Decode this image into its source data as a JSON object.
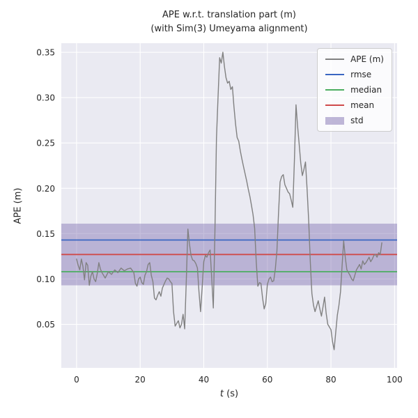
{
  "figure": {
    "title_line1": "APE w.r.t. translation part (m)",
    "title_line2": "(with Sim(3) Umeyama alignment)"
  },
  "chart_data": {
    "type": "line",
    "title": "APE w.r.t. translation part (m)\n(with Sim(3) Umeyama alignment)",
    "xlabel": "t (s)",
    "xlabel_italic": "t",
    "xlabel_rest": " (s)",
    "ylabel": "APE (m)",
    "xlim": [
      -4.8,
      100.8
    ],
    "ylim": [
      0.002,
      0.36
    ],
    "grid": true,
    "legend_position": "upper right",
    "xticks": [
      0,
      20,
      40,
      60,
      80,
      100
    ],
    "xtick_labels": [
      "0",
      "20",
      "40",
      "60",
      "80",
      "100"
    ],
    "yticks": [
      0.05,
      0.1,
      0.15,
      0.2,
      0.25,
      0.3,
      0.35
    ],
    "ytick_labels": [
      "0.05",
      "0.10",
      "0.15",
      "0.20",
      "0.25",
      "0.30",
      "0.35"
    ],
    "colors": {
      "plot_bg": "#eaeaf2",
      "grid": "#ffffff",
      "trace": "#808080",
      "rmse": "#3a66c2",
      "median": "#4bae60",
      "mean": "#cf4a4a",
      "std_band": "#8172b2",
      "text": "#262626"
    },
    "stats": {
      "rmse": 0.143,
      "median": 0.108,
      "mean": 0.127,
      "std_band": [
        0.093,
        0.161
      ]
    },
    "legend": [
      {
        "label": "APE (m)",
        "type": "line",
        "color": "#808080"
      },
      {
        "label": "rmse",
        "type": "line",
        "color": "#3a66c2"
      },
      {
        "label": "median",
        "type": "line",
        "color": "#4bae60"
      },
      {
        "label": "mean",
        "type": "line",
        "color": "#cf4a4a"
      },
      {
        "label": "std",
        "type": "band",
        "color": "#8172b2"
      }
    ],
    "series": [
      {
        "name": "APE (m)",
        "color": "#808080",
        "points": [
          [
            0,
            0.122
          ],
          [
            0.5,
            0.115
          ],
          [
            1,
            0.11
          ],
          [
            1.5,
            0.122
          ],
          [
            2,
            0.114
          ],
          [
            2.5,
            0.099
          ],
          [
            3,
            0.118
          ],
          [
            3.5,
            0.115
          ],
          [
            4,
            0.093
          ],
          [
            4.5,
            0.103
          ],
          [
            5,
            0.108
          ],
          [
            5.5,
            0.1
          ],
          [
            6,
            0.097
          ],
          [
            6.5,
            0.106
          ],
          [
            7,
            0.118
          ],
          [
            7.5,
            0.111
          ],
          [
            8,
            0.107
          ],
          [
            9,
            0.101
          ],
          [
            10,
            0.108
          ],
          [
            11,
            0.105
          ],
          [
            12,
            0.11
          ],
          [
            13,
            0.107
          ],
          [
            14,
            0.112
          ],
          [
            15,
            0.109
          ],
          [
            16,
            0.111
          ],
          [
            17,
            0.112
          ],
          [
            18,
            0.107
          ],
          [
            18.5,
            0.095
          ],
          [
            19,
            0.092
          ],
          [
            19.5,
            0.1
          ],
          [
            20,
            0.102
          ],
          [
            20.5,
            0.096
          ],
          [
            21,
            0.094
          ],
          [
            21.5,
            0.104
          ],
          [
            22,
            0.108
          ],
          [
            22.5,
            0.116
          ],
          [
            23,
            0.118
          ],
          [
            23.5,
            0.104
          ],
          [
            24,
            0.097
          ],
          [
            24.5,
            0.079
          ],
          [
            25,
            0.077
          ],
          [
            25.5,
            0.082
          ],
          [
            26,
            0.086
          ],
          [
            26.5,
            0.081
          ],
          [
            27,
            0.09
          ],
          [
            27.5,
            0.094
          ],
          [
            28,
            0.098
          ],
          [
            28.5,
            0.101
          ],
          [
            29,
            0.1
          ],
          [
            29.5,
            0.097
          ],
          [
            30,
            0.095
          ],
          [
            30.5,
            0.064
          ],
          [
            31,
            0.048
          ],
          [
            31.5,
            0.051
          ],
          [
            32,
            0.054
          ],
          [
            32.5,
            0.046
          ],
          [
            33,
            0.05
          ],
          [
            33.5,
            0.061
          ],
          [
            34,
            0.045
          ],
          [
            34.5,
            0.098
          ],
          [
            35,
            0.155
          ],
          [
            35.5,
            0.139
          ],
          [
            36,
            0.126
          ],
          [
            36.5,
            0.121
          ],
          [
            37,
            0.12
          ],
          [
            37.5,
            0.117
          ],
          [
            38,
            0.112
          ],
          [
            38.5,
            0.086
          ],
          [
            39,
            0.064
          ],
          [
            39.5,
            0.091
          ],
          [
            40,
            0.119
          ],
          [
            40.5,
            0.126
          ],
          [
            41,
            0.124
          ],
          [
            41.5,
            0.129
          ],
          [
            42,
            0.132
          ],
          [
            42.5,
            0.101
          ],
          [
            43,
            0.068
          ],
          [
            43.5,
            0.152
          ],
          [
            44,
            0.255
          ],
          [
            44.5,
            0.301
          ],
          [
            45,
            0.344
          ],
          [
            45.5,
            0.338
          ],
          [
            46,
            0.35
          ],
          [
            46.5,
            0.334
          ],
          [
            47,
            0.322
          ],
          [
            47.5,
            0.316
          ],
          [
            48,
            0.318
          ],
          [
            48.5,
            0.309
          ],
          [
            49,
            0.312
          ],
          [
            49.5,
            0.29
          ],
          [
            50,
            0.271
          ],
          [
            50.5,
            0.256
          ],
          [
            51,
            0.252
          ],
          [
            51.5,
            0.241
          ],
          [
            52,
            0.232
          ],
          [
            52.5,
            0.224
          ],
          [
            53,
            0.216
          ],
          [
            53.5,
            0.208
          ],
          [
            54,
            0.199
          ],
          [
            54.5,
            0.191
          ],
          [
            55,
            0.181
          ],
          [
            55.5,
            0.171
          ],
          [
            56,
            0.156
          ],
          [
            56.5,
            0.119
          ],
          [
            57,
            0.092
          ],
          [
            57.5,
            0.096
          ],
          [
            58,
            0.095
          ],
          [
            58.5,
            0.079
          ],
          [
            59,
            0.067
          ],
          [
            59.5,
            0.073
          ],
          [
            60,
            0.094
          ],
          [
            60.5,
            0.1
          ],
          [
            61,
            0.102
          ],
          [
            61.5,
            0.097
          ],
          [
            62,
            0.098
          ],
          [
            62.5,
            0.111
          ],
          [
            63,
            0.131
          ],
          [
            63.5,
            0.171
          ],
          [
            64,
            0.207
          ],
          [
            64.5,
            0.213
          ],
          [
            65,
            0.215
          ],
          [
            65.5,
            0.204
          ],
          [
            66,
            0.2
          ],
          [
            66.5,
            0.196
          ],
          [
            67,
            0.194
          ],
          [
            67.5,
            0.187
          ],
          [
            68,
            0.179
          ],
          [
            68.5,
            0.231
          ],
          [
            69,
            0.292
          ],
          [
            69.5,
            0.269
          ],
          [
            70,
            0.249
          ],
          [
            70.5,
            0.228
          ],
          [
            71,
            0.214
          ],
          [
            71.5,
            0.221
          ],
          [
            72,
            0.229
          ],
          [
            72.5,
            0.199
          ],
          [
            73,
            0.164
          ],
          [
            73.5,
            0.119
          ],
          [
            74,
            0.084
          ],
          [
            74.5,
            0.071
          ],
          [
            75,
            0.064
          ],
          [
            75.5,
            0.07
          ],
          [
            76,
            0.076
          ],
          [
            76.5,
            0.067
          ],
          [
            77,
            0.059
          ],
          [
            77.5,
            0.069
          ],
          [
            78,
            0.08
          ],
          [
            78.5,
            0.062
          ],
          [
            79,
            0.05
          ],
          [
            79.5,
            0.047
          ],
          [
            80,
            0.044
          ],
          [
            80.5,
            0.031
          ],
          [
            81,
            0.022
          ],
          [
            81.5,
            0.041
          ],
          [
            82,
            0.06
          ],
          [
            82.5,
            0.071
          ],
          [
            83,
            0.086
          ],
          [
            83.5,
            0.114
          ],
          [
            84,
            0.142
          ],
          [
            84.5,
            0.124
          ],
          [
            85,
            0.11
          ],
          [
            85.5,
            0.107
          ],
          [
            86,
            0.104
          ],
          [
            86.5,
            0.1
          ],
          [
            87,
            0.098
          ],
          [
            87.5,
            0.104
          ],
          [
            88,
            0.11
          ],
          [
            88.5,
            0.113
          ],
          [
            89,
            0.116
          ],
          [
            89.5,
            0.111
          ],
          [
            90,
            0.12
          ],
          [
            90.5,
            0.116
          ],
          [
            91,
            0.118
          ],
          [
            91.5,
            0.121
          ],
          [
            92,
            0.124
          ],
          [
            92.5,
            0.119
          ],
          [
            93,
            0.122
          ],
          [
            93.5,
            0.126
          ],
          [
            94,
            0.127
          ],
          [
            94.5,
            0.124
          ],
          [
            95,
            0.129
          ],
          [
            95.5,
            0.127
          ],
          [
            96,
            0.14
          ]
        ]
      }
    ]
  }
}
